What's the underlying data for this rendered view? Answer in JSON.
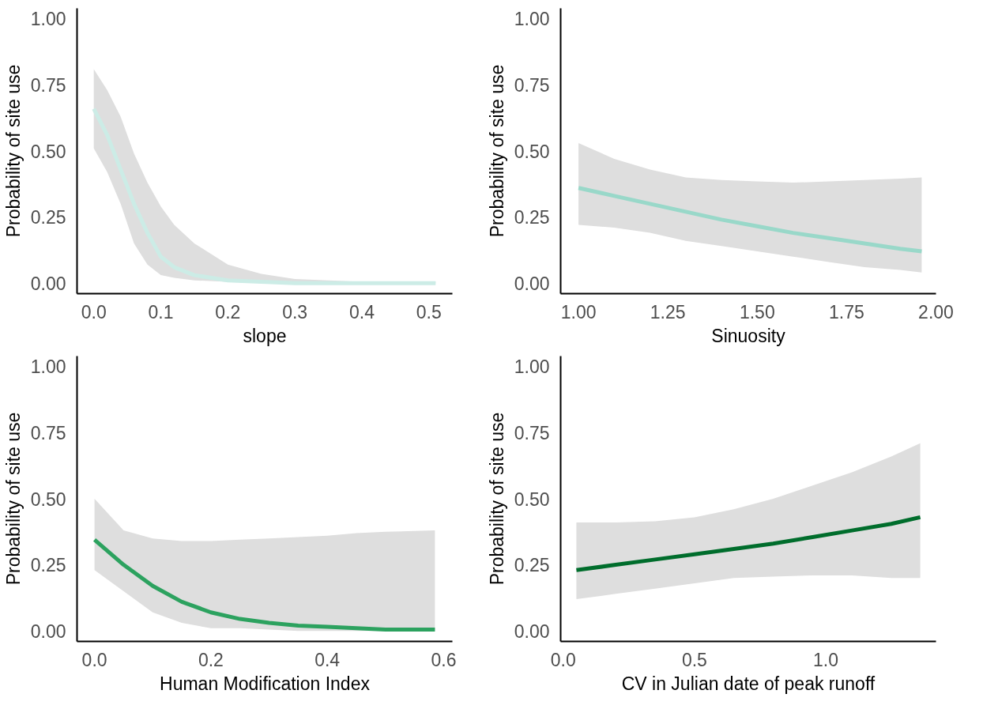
{
  "chart_data": [
    {
      "type": "line",
      "xlabel": "slope",
      "ylabel": "Probability of site use",
      "grid": false,
      "xlim": [
        -0.025,
        0.535
      ],
      "ylim": [
        -0.04,
        1.04
      ],
      "xticks": [
        {
          "value": 0,
          "label": "0.0"
        },
        {
          "value": 0.1,
          "label": "0.1"
        },
        {
          "value": 0.2,
          "label": "0.2"
        },
        {
          "value": 0.3,
          "label": "0.3"
        },
        {
          "value": 0.4,
          "label": "0.4"
        },
        {
          "value": 0.5,
          "label": "0.5"
        }
      ],
      "yticks": [
        {
          "value": 0,
          "label": "0.00"
        },
        {
          "value": 0.25,
          "label": "0.25"
        },
        {
          "value": 0.5,
          "label": "0.50"
        },
        {
          "value": 0.75,
          "label": "0.75"
        },
        {
          "value": 1,
          "label": "1.00"
        }
      ],
      "x": [
        0,
        0.02,
        0.04,
        0.06,
        0.08,
        0.1,
        0.12,
        0.15,
        0.2,
        0.25,
        0.3,
        0.4,
        0.51
      ],
      "series": [
        {
          "color": "#ccece6",
          "values": [
            0.66,
            0.56,
            0.43,
            0.3,
            0.19,
            0.1,
            0.06,
            0.03,
            0.01,
            0.005,
            0,
            0,
            0
          ],
          "lower": [
            0.51,
            0.42,
            0.3,
            0.15,
            0.07,
            0.03,
            0.02,
            0.01,
            0.005,
            0,
            0,
            0,
            0
          ],
          "upper": [
            0.81,
            0.73,
            0.63,
            0.49,
            0.38,
            0.29,
            0.22,
            0.15,
            0.07,
            0.035,
            0.015,
            0.005,
            0.005
          ]
        }
      ]
    },
    {
      "type": "line",
      "xlabel": "Sinuosity",
      "ylabel": "Probability of site use",
      "grid": false,
      "xlim": [
        0.95,
        2.0
      ],
      "ylim": [
        -0.04,
        1.04
      ],
      "xticks": [
        {
          "value": 1,
          "label": "1.00"
        },
        {
          "value": 1.25,
          "label": "1.25"
        },
        {
          "value": 1.5,
          "label": "1.50"
        },
        {
          "value": 1.75,
          "label": "1.75"
        },
        {
          "value": 2,
          "label": "2.00"
        }
      ],
      "yticks": [
        {
          "value": 0,
          "label": "0.00"
        },
        {
          "value": 0.25,
          "label": "0.25"
        },
        {
          "value": 0.5,
          "label": "0.50"
        },
        {
          "value": 0.75,
          "label": "0.75"
        },
        {
          "value": 1,
          "label": "1.00"
        }
      ],
      "x": [
        1.0,
        1.1,
        1.2,
        1.3,
        1.4,
        1.5,
        1.6,
        1.7,
        1.8,
        1.9,
        1.96
      ],
      "series": [
        {
          "color": "#99d8c9",
          "values": [
            0.36,
            0.33,
            0.3,
            0.27,
            0.24,
            0.215,
            0.19,
            0.17,
            0.15,
            0.13,
            0.12
          ],
          "lower": [
            0.22,
            0.21,
            0.19,
            0.16,
            0.14,
            0.12,
            0.1,
            0.08,
            0.06,
            0.05,
            0.04
          ],
          "upper": [
            0.53,
            0.47,
            0.43,
            0.4,
            0.39,
            0.385,
            0.38,
            0.385,
            0.39,
            0.395,
            0.4
          ]
        }
      ]
    },
    {
      "type": "line",
      "xlabel": "Human Modification Index",
      "ylabel": "Probability of site use",
      "grid": false,
      "xlim": [
        -0.03,
        0.615
      ],
      "ylim": [
        -0.04,
        1.04
      ],
      "xticks": [
        {
          "value": 0,
          "label": "0.0"
        },
        {
          "value": 0.2,
          "label": "0.2"
        },
        {
          "value": 0.4,
          "label": "0.4"
        },
        {
          "value": 0.6,
          "label": "0.6"
        }
      ],
      "yticks": [
        {
          "value": 0,
          "label": "0.00"
        },
        {
          "value": 0.25,
          "label": "0.25"
        },
        {
          "value": 0.5,
          "label": "0.50"
        },
        {
          "value": 0.75,
          "label": "0.75"
        },
        {
          "value": 1,
          "label": "1.00"
        }
      ],
      "x": [
        0,
        0.05,
        0.1,
        0.15,
        0.2,
        0.25,
        0.3,
        0.35,
        0.4,
        0.45,
        0.5,
        0.585
      ],
      "series": [
        {
          "color": "#2ca25f",
          "values": [
            0.345,
            0.25,
            0.17,
            0.11,
            0.07,
            0.045,
            0.03,
            0.02,
            0.015,
            0.01,
            0.005,
            0.005
          ],
          "lower": [
            0.23,
            0.15,
            0.07,
            0.03,
            0.01,
            0.01,
            0.005,
            0,
            0,
            0,
            0,
            0
          ],
          "upper": [
            0.5,
            0.38,
            0.35,
            0.34,
            0.34,
            0.345,
            0.35,
            0.355,
            0.36,
            0.37,
            0.375,
            0.38
          ]
        }
      ]
    },
    {
      "type": "line",
      "xlabel": "CV in Julian date of peak runoff",
      "ylabel": "Probability of site use",
      "grid": false,
      "xlim": [
        -0.01,
        1.42
      ],
      "ylim": [
        -0.04,
        1.04
      ],
      "xticks": [
        {
          "value": 0,
          "label": "0.0"
        },
        {
          "value": 0.5,
          "label": "0.5"
        },
        {
          "value": 1,
          "label": "1.0"
        }
      ],
      "yticks": [
        {
          "value": 0,
          "label": "0.00"
        },
        {
          "value": 0.25,
          "label": "0.25"
        },
        {
          "value": 0.5,
          "label": "0.50"
        },
        {
          "value": 0.75,
          "label": "0.75"
        },
        {
          "value": 1,
          "label": "1.00"
        }
      ],
      "x": [
        0.05,
        0.2,
        0.35,
        0.5,
        0.65,
        0.8,
        0.95,
        1.1,
        1.25,
        1.36
      ],
      "series": [
        {
          "color": "#006d2c",
          "values": [
            0.23,
            0.25,
            0.27,
            0.29,
            0.31,
            0.33,
            0.355,
            0.38,
            0.405,
            0.43
          ],
          "lower": [
            0.12,
            0.14,
            0.16,
            0.18,
            0.2,
            0.205,
            0.21,
            0.21,
            0.2,
            0.2
          ],
          "upper": [
            0.41,
            0.41,
            0.415,
            0.43,
            0.46,
            0.5,
            0.55,
            0.6,
            0.66,
            0.71
          ]
        }
      ]
    }
  ]
}
